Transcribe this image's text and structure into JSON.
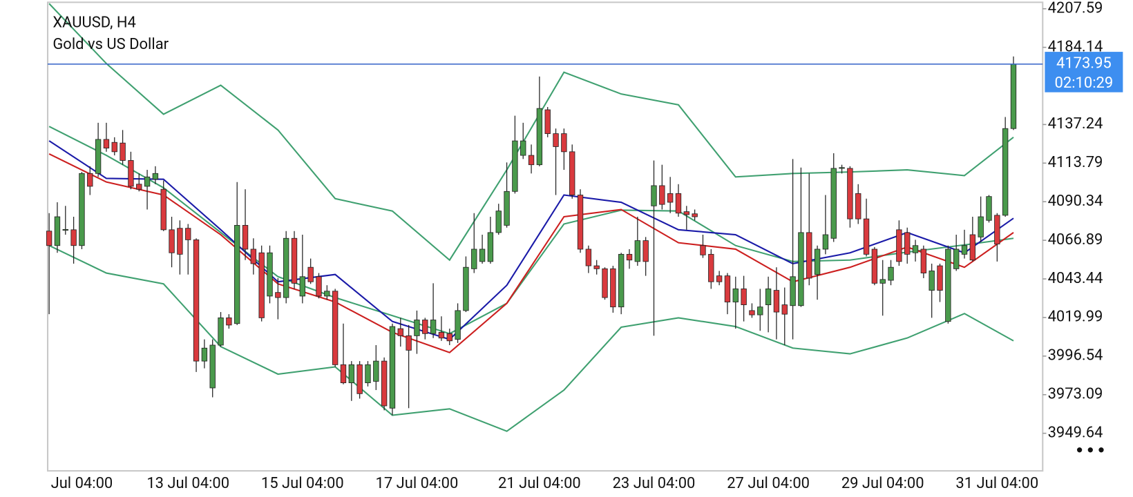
{
  "chart_data": {
    "type": "candlestick",
    "title": "XAUUSD, H4",
    "subtitle": "Gold vs US Dollar",
    "up_color": "#4a9a4c",
    "down_color": "#d93a3e",
    "categories": [
      null,
      null,
      null,
      null,
      "Jul 04:00",
      null,
      null,
      null,
      null,
      null,
      null,
      null,
      null,
      null,
      null,
      null,
      null,
      "13 Jul 04:00",
      null,
      null,
      null,
      null,
      null,
      null,
      null,
      null,
      null,
      null,
      null,
      null,
      null,
      "15 Jul 04:00",
      null,
      null,
      null,
      null,
      null,
      null,
      null,
      null,
      null,
      null,
      null,
      null,
      null,
      "17 Jul 04:00",
      null,
      null,
      null,
      null,
      null,
      null,
      null,
      null,
      null,
      null,
      null,
      null,
      null,
      null,
      "21 Jul 04:00",
      null,
      null,
      null,
      null,
      null,
      null,
      null,
      null,
      null,
      null,
      null,
      null,
      null,
      "23 Jul 04:00",
      null,
      null,
      null,
      null,
      null,
      null,
      null,
      null,
      null,
      null,
      null,
      null,
      null,
      "27 Jul 04:00",
      null,
      null,
      null,
      null,
      null,
      null,
      null,
      null,
      null,
      null,
      null,
      null,
      null,
      "29 Jul 04:00",
      null,
      null,
      null,
      null,
      null,
      null,
      null,
      null,
      null,
      null,
      null,
      null,
      null,
      "31 Jul 04:00",
      null,
      null
    ],
    "open": [
      4072.5,
      4063.7,
      4073.3,
      4073.3,
      4063.7,
      4107.5,
      4107.5,
      4128.2,
      4126.4,
      4126.0,
      4115.4,
      4101.0,
      4099.7,
      4104.0,
      4097.9,
      4073.3,
      4074.2,
      4074.2,
      4067.2,
      3993.5,
      3977.2,
      4003.2,
      4019.8,
      4016.3,
      4076.0,
      4061.5,
      4059.3,
      4033.0,
      4035.2,
      4032.1,
      4068.1,
      4033.0,
      4050.5,
      4044.8,
      4033.0,
      4036.0,
      3991.3,
      3980.3,
      3991.3,
      3980.3,
      3981.2,
      3993.5,
      3964.9,
      4013.2,
      4008.9,
      4008.9,
      4018.5,
      4010.2,
      4011.0,
      4010.2,
      4006.7,
      4024.2,
      4049.6,
      4054.0,
      4054.0,
      4071.6,
      4076.0,
      4096.6,
      4118.5,
      4118.5,
      4112.8,
      4146.2,
      4131.7,
      4131.7,
      4120.7,
      4094.4,
      4061.5,
      4051.4,
      4049.6,
      4049.6,
      4026.4,
      4058.4,
      4054.0,
      4066.7,
      4087.8,
      4100.1,
      4095.3,
      4095.3,
      4084.3,
      4083.0,
      4063.7,
      4058.4,
      4045.3,
      4045.3,
      4029.4,
      4037.4,
      4024.2,
      4021.6,
      4027.7,
      4036.5,
      4027.7,
      4027.2,
      4027.2,
      4071.6,
      4046.1,
      4061.5,
      4068.1,
      4110.6,
      4110.6,
      4095.3,
      4079.9,
      4061.5,
      4040.8,
      4042.6,
      4073.3,
      4071.6,
      4059.3,
      4061.5,
      4036.5,
      4051.4,
      4017.6,
      4049.6,
      4058.4,
      4070.3,
      4068.9,
      4079.0,
      4082.1,
      4082.1,
      4134.8
    ],
    "high": [
      4083.4,
      4090.0,
      4087.8,
      4081.2,
      4108.4,
      4111.9,
      4138.3,
      4138.3,
      4129.5,
      4133.9,
      4120.7,
      4107.5,
      4109.7,
      4111.9,
      4103.2,
      4081.2,
      4079.0,
      4076.8,
      4068.1,
      4006.7,
      4006.7,
      4023.3,
      4022.0,
      4102.3,
      4097.9,
      4068.1,
      4063.7,
      4063.7,
      4043.9,
      4072.5,
      4072.5,
      4070.3,
      4055.8,
      4047.0,
      4039.6,
      4037.4,
      4016.3,
      3993.5,
      3993.5,
      3993.5,
      4003.2,
      3995.7,
      4016.3,
      4019.8,
      4015.4,
      4024.2,
      4019.8,
      4040.8,
      4020.7,
      4013.2,
      4028.6,
      4057.1,
      4083.4,
      4070.3,
      4081.2,
      4089.1,
      4114.2,
      4142.6,
      4138.3,
      4125.1,
      4166.4,
      4147.9,
      4134.8,
      4134.8,
      4125.1,
      4097.9,
      4063.7,
      4054.9,
      4050.5,
      4051.4,
      4059.3,
      4061.5,
      4081.2,
      4068.9,
      4115.4,
      4112.8,
      4105.4,
      4101.0,
      4087.8,
      4085.6,
      4070.3,
      4061.5,
      4048.3,
      4047.0,
      4044.8,
      4045.3,
      4028.6,
      4037.4,
      4044.8,
      4050.5,
      4038.2,
      4116.3,
      4111.1,
      4107.5,
      4063.7,
      4094.4,
      4119.8,
      4112.8,
      4111.9,
      4101.0,
      4092.2,
      4062.8,
      4054.9,
      4054.9,
      4079.0,
      4074.6,
      4067.2,
      4063.7,
      4052.7,
      4052.7,
      4063.7,
      4070.3,
      4073.3,
      4081.2,
      4093.5,
      4094.4,
      4083.4,
      4141.8,
      4178.6
    ],
    "low": [
      4022.0,
      4059.3,
      4070.3,
      4052.7,
      4061.5,
      4094.4,
      4105.4,
      4120.7,
      4118.5,
      4112.8,
      4097.9,
      4096.6,
      4085.6,
      4101.0,
      4072.5,
      4050.5,
      4046.1,
      4046.1,
      3986.9,
      3989.1,
      3971.5,
      4002.3,
      4013.2,
      4015.4,
      4054.9,
      4046.1,
      4017.6,
      4028.6,
      4018.9,
      4028.6,
      4037.4,
      4028.6,
      4040.4,
      4031.6,
      4030.8,
      3990.0,
      3979.4,
      3969.3,
      3970.7,
      3978.1,
      3975.9,
      3963.6,
      3960.6,
      4002.3,
      3964.9,
      3997.9,
      4006.7,
      4007.5,
      4005.8,
      4003.2,
      4004.5,
      4023.3,
      4047.0,
      4052.7,
      4052.7,
      4070.3,
      4074.6,
      4095.3,
      4116.3,
      4107.5,
      4111.9,
      4129.5,
      4094.4,
      4109.7,
      4092.2,
      4059.3,
      4047.0,
      4046.1,
      4030.8,
      4022.9,
      4022.0,
      4049.6,
      4051.4,
      4045.3,
      4008.9,
      4085.6,
      4083.4,
      4081.2,
      4073.3,
      4079.0,
      4056.2,
      4037.4,
      4039.6,
      4022.0,
      4013.2,
      4017.6,
      4019.8,
      4011.9,
      4011.0,
      4006.7,
      4003.2,
      4006.7,
      4026.4,
      4039.6,
      4030.8,
      4058.4,
      4065.9,
      4107.5,
      4074.6,
      4076.8,
      4057.1,
      4039.6,
      4021.1,
      4039.6,
      4051.4,
      4052.7,
      4054.0,
      4043.9,
      4019.8,
      4029.4,
      4016.3,
      4048.3,
      4055.8,
      4054.0,
      4065.9,
      4077.7,
      4054.0,
      4081.2,
      4133.9
    ],
    "close": [
      4063.7,
      4081.2,
      4073.5,
      4063.7,
      4107.5,
      4099.7,
      4128.2,
      4122.9,
      4120.7,
      4115.4,
      4099.7,
      4097.9,
      4105.4,
      4107.5,
      4073.3,
      4059.3,
      4058.4,
      4067.2,
      3993.5,
      4001.4,
      4003.2,
      4019.8,
      4015.4,
      4076.0,
      4061.5,
      4052.7,
      4019.8,
      4059.3,
      4032.1,
      4068.1,
      4040.8,
      4044.8,
      4041.7,
      4033.0,
      4036.0,
      3991.3,
      3980.3,
      3991.3,
      3973.7,
      3991.3,
      3993.5,
      3966.3,
      4014.5,
      4008.9,
      4000.1,
      4018.5,
      4010.2,
      4018.5,
      4007.5,
      4005.8,
      4024.2,
      4050.5,
      4061.5,
      4061.5,
      4071.6,
      4084.7,
      4096.6,
      4127.3,
      4127.3,
      4112.8,
      4147.0,
      4131.7,
      4123.8,
      4120.7,
      4094.4,
      4061.5,
      4051.4,
      4049.6,
      4032.1,
      4026.4,
      4058.4,
      4054.9,
      4066.7,
      4054.0,
      4100.1,
      4088.7,
      4090.0,
      4083.4,
      4082.5,
      4081.2,
      4058.0,
      4041.7,
      4041.7,
      4029.4,
      4037.4,
      4027.7,
      4021.6,
      4026.4,
      4037.4,
      4023.3,
      4022.0,
      4044.8,
      4071.6,
      4043.9,
      4061.5,
      4070.3,
      4110.6,
      4111.1,
      4079.9,
      4079.9,
      4058.4,
      4040.8,
      4043.1,
      4050.5,
      4054.0,
      4058.4,
      4063.7,
      4047.0,
      4048.3,
      4036.5,
      4061.5,
      4061.5,
      4063.7,
      4054.9,
      4081.2,
      4093.5,
      4064.6,
      4134.8,
      4173.95
    ],
    "series": [
      {
        "color": "#3fa070",
        "x": [
          0,
          7,
          14,
          21,
          28,
          35,
          42,
          49,
          56,
          63,
          70,
          77,
          84,
          91,
          98,
          105,
          112,
          118
        ],
        "values": [
          4210.7,
          4174.3,
          4143.5,
          4161.1,
          4133.9,
          4092.2,
          4084.7,
          4054.9,
          4109.7,
          4169.0,
          4155.8,
          4149.2,
          4105.4,
          4107.5,
          4108.4,
          4109.7,
          4106.2,
          4129.5
        ]
      },
      {
        "color": "#3fa070",
        "x": [
          0,
          7,
          14,
          21,
          28,
          35,
          42,
          49,
          56,
          63,
          70,
          77,
          84,
          91,
          98,
          105,
          112,
          118
        ],
        "values": [
          4136.1,
          4118.5,
          4098.8,
          4071.6,
          4044.8,
          4032.1,
          4021.1,
          4010.2,
          4028.6,
          4076.8,
          4085.2,
          4084.7,
          4063.7,
          4054.0,
          4054.9,
          4059.7,
          4064.1,
          4068.1
        ]
      },
      {
        "color": "#3fa070",
        "x": [
          0,
          7,
          14,
          21,
          28,
          35,
          42,
          49,
          56,
          63,
          70,
          77,
          84,
          91,
          98,
          105,
          112,
          118
        ],
        "values": [
          4063.7,
          4047.0,
          4040.4,
          4002.3,
          3985.6,
          3990.0,
          3960.6,
          3964.5,
          3950.9,
          3975.9,
          4014.1,
          4019.8,
          4014.5,
          4001.4,
          3997.9,
          4007.5,
          4022.4,
          4005.8
        ]
      },
      {
        "color": "#1a1aa8",
        "x": [
          0,
          7,
          14,
          21,
          28,
          35,
          42,
          49,
          56,
          63,
          70,
          77,
          84,
          91,
          98,
          105,
          112,
          118
        ],
        "values": [
          4127.3,
          4104.5,
          4104.0,
          4073.3,
          4041.7,
          4046.1,
          4017.6,
          4006.7,
          4039.6,
          4094.4,
          4090.0,
          4073.3,
          4070.3,
          4052.7,
          4059.3,
          4071.6,
          4059.3,
          4080.3
        ]
      },
      {
        "color": "#cc1f1f",
        "x": [
          0,
          7,
          14,
          21,
          28,
          35,
          42,
          49,
          56,
          63,
          70,
          77,
          84,
          91,
          98,
          105,
          112,
          118
        ],
        "values": [
          4119.4,
          4102.3,
          4094.4,
          4070.3,
          4040.4,
          4029.4,
          4011.0,
          3998.7,
          4028.6,
          4081.2,
          4085.6,
          4065.4,
          4061.5,
          4041.7,
          4050.5,
          4062.8,
          4050.5,
          4071.6
        ]
      }
    ],
    "current_price": 4173.95,
    "current_price_color": "#3060c8",
    "timer": "02:10:29",
    "ylim": [
      3926.8,
      4211.5
    ],
    "yticks": [
      4207.59,
      4184.14,
      4137.24,
      4113.79,
      4090.34,
      4066.89,
      4043.44,
      4019.99,
      3996.54,
      3973.09,
      3949.64
    ],
    "grid": false
  }
}
